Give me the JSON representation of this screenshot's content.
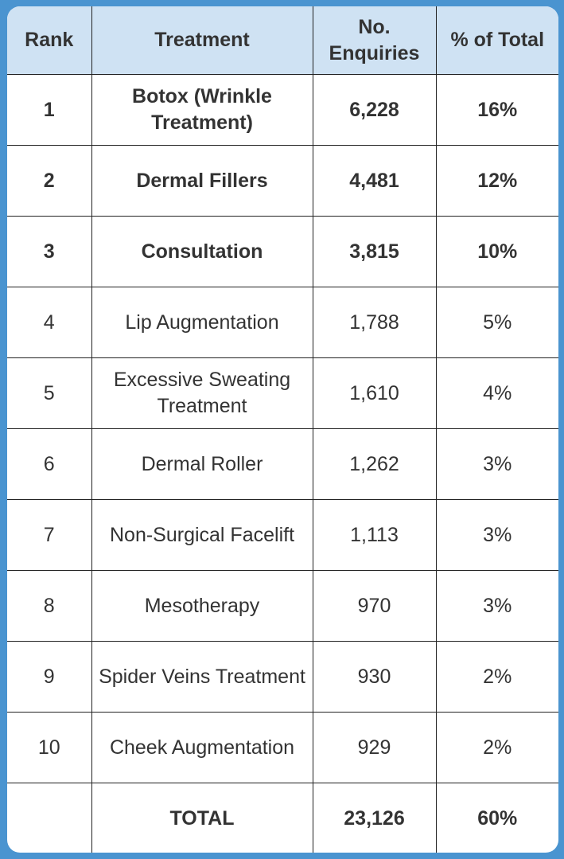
{
  "chart_data": {
    "type": "table",
    "columns": [
      "Rank",
      "Treatment",
      "No. Enquiries",
      "% of Total"
    ],
    "rows": [
      {
        "rank": "1",
        "treatment": "Botox (Wrinkle Treatment)",
        "enquiries": "6,228",
        "pct": "16%",
        "bold": true
      },
      {
        "rank": "2",
        "treatment": "Dermal Fillers",
        "enquiries": "4,481",
        "pct": "12%",
        "bold": true
      },
      {
        "rank": "3",
        "treatment": "Consultation",
        "enquiries": "3,815",
        "pct": "10%",
        "bold": true
      },
      {
        "rank": "4",
        "treatment": "Lip Augmentation",
        "enquiries": "1,788",
        "pct": "5%"
      },
      {
        "rank": "5",
        "treatment": "Excessive Sweating Treatment",
        "enquiries": "1,610",
        "pct": "4%"
      },
      {
        "rank": "6",
        "treatment": "Dermal Roller",
        "enquiries": "1,262",
        "pct": "3%"
      },
      {
        "rank": "7",
        "treatment": "Non-Surgical Facelift",
        "enquiries": "1,113",
        "pct": "3%"
      },
      {
        "rank": "8",
        "treatment": "Mesotherapy",
        "enquiries": "970",
        "pct": "3%"
      },
      {
        "rank": "9",
        "treatment": "Spider Veins Treatment",
        "enquiries": "930",
        "pct": "2%"
      },
      {
        "rank": "10",
        "treatment": "Cheek Augmentation",
        "enquiries": "929",
        "pct": "2%"
      }
    ],
    "total": {
      "rank": "",
      "treatment": "TOTAL",
      "enquiries": "23,126",
      "pct": "60%"
    }
  },
  "colors": {
    "frame": "#4a94d0",
    "header": "#cfe2f3"
  }
}
